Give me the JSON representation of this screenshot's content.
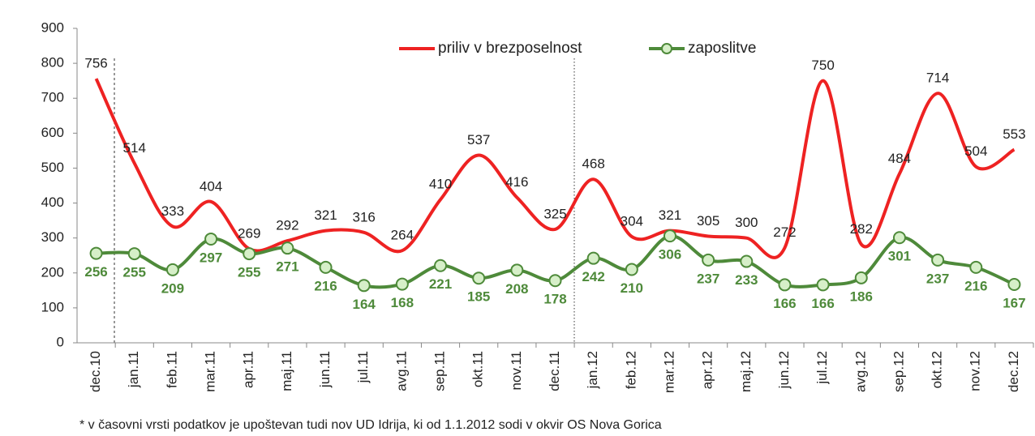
{
  "chart_data": {
    "type": "line",
    "categories": [
      "dec.10",
      "jan.11",
      "feb.11",
      "mar.11",
      "apr.11",
      "maj.11",
      "jun.11",
      "jul.11",
      "avg.11",
      "sep.11",
      "okt.11",
      "nov.11",
      "dec.11",
      "jan.12",
      "feb.12",
      "mar.12",
      "apr.12",
      "maj.12",
      "jun.12",
      "jul.12",
      "avg.12",
      "sep.12",
      "okt.12",
      "nov.12",
      "dec.12"
    ],
    "series": [
      {
        "name": "priliv v brezposelnost",
        "color": "#ee2222",
        "values": [
          756,
          514,
          333,
          404,
          269,
          292,
          321,
          316,
          264,
          410,
          537,
          416,
          325,
          468,
          304,
          321,
          305,
          300,
          272,
          750,
          282,
          484,
          714,
          504,
          553
        ]
      },
      {
        "name": "zaposlitve",
        "color": "#4e8a3a",
        "values": [
          256,
          255,
          209,
          297,
          255,
          271,
          216,
          164,
          168,
          221,
          185,
          208,
          178,
          242,
          210,
          306,
          237,
          233,
          166,
          166,
          186,
          301,
          237,
          216,
          167
        ]
      }
    ],
    "ylim": [
      0,
      900
    ],
    "yticks": [
      0,
      100,
      200,
      300,
      400,
      500,
      600,
      700,
      800,
      900
    ],
    "smooth": true,
    "grid": false,
    "legend": "top",
    "footnote": "* v časovni vrsti podatkov je upoštevan tudi nov UD Idrija, ki od 1.1.2012 sodi v okvir OS Nova Gorica"
  }
}
